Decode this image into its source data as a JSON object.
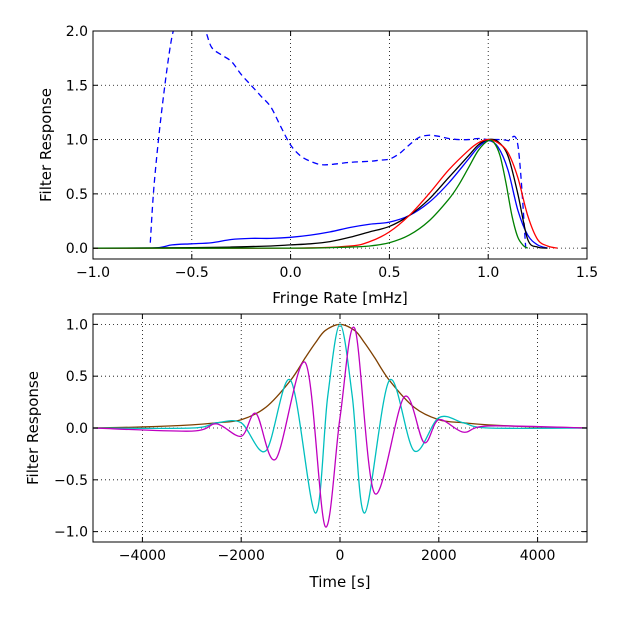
{
  "chart_data": [
    {
      "type": "line",
      "title": "",
      "xlabel": "Fringe Rate [mHz]",
      "ylabel": "Filter Response",
      "xlim": [
        -1.0,
        1.5
      ],
      "ylim": [
        -0.1,
        2.0
      ],
      "grid": true,
      "xticks": [
        -1.0,
        -0.5,
        0.0,
        0.5,
        1.0,
        1.5
      ],
      "xtick_labels": [
        "−1.0",
        "−0.5",
        "0.0",
        "0.5",
        "1.0",
        "1.5"
      ],
      "yticks": [
        0.0,
        0.5,
        1.0,
        1.5,
        2.0
      ],
      "ytick_labels": [
        "0.0",
        "0.5",
        "1.0",
        "1.5",
        "2.0"
      ],
      "series": [
        {
          "name": "blue-dashed",
          "color": "#0000ff",
          "style": "dashed",
          "x": [
            -0.71,
            -0.69,
            -0.65,
            -0.6,
            -0.56,
            -0.5,
            -0.45,
            -0.43,
            -0.4,
            -0.35,
            -0.3,
            -0.25,
            -0.2,
            -0.15,
            -0.1,
            -0.05,
            0.0,
            0.05,
            0.1,
            0.15,
            0.2,
            0.3,
            0.4,
            0.45,
            0.5,
            0.55,
            0.6,
            0.65,
            0.7,
            0.75,
            0.8,
            0.85,
            0.9,
            0.95,
            1.0,
            1.05,
            1.1,
            1.15,
            1.19
          ],
          "y": [
            0.05,
            0.6,
            1.3,
            1.95,
            2.1,
            2.1,
            2.05,
            2.0,
            1.85,
            1.78,
            1.72,
            1.6,
            1.5,
            1.4,
            1.3,
            1.12,
            0.95,
            0.85,
            0.8,
            0.77,
            0.77,
            0.79,
            0.8,
            0.81,
            0.82,
            0.87,
            0.95,
            1.02,
            1.04,
            1.03,
            1.01,
            1.0,
            1.0,
            1.01,
            1.0,
            1.0,
            0.99,
            0.95,
            0.0
          ]
        },
        {
          "name": "blue-solid",
          "color": "#0000ff",
          "style": "solid",
          "x": [
            -1.0,
            -0.7,
            -0.6,
            -0.5,
            -0.4,
            -0.3,
            -0.2,
            -0.1,
            0.0,
            0.1,
            0.2,
            0.3,
            0.4,
            0.5,
            0.6,
            0.7,
            0.8,
            0.9,
            0.95,
            1.0,
            1.05,
            1.1,
            1.15,
            1.2,
            1.25,
            1.3
          ],
          "y": [
            0.0,
            0.0,
            0.03,
            0.04,
            0.05,
            0.08,
            0.09,
            0.09,
            0.1,
            0.12,
            0.15,
            0.19,
            0.22,
            0.24,
            0.3,
            0.42,
            0.6,
            0.82,
            0.93,
            0.99,
            0.93,
            0.72,
            0.35,
            0.12,
            0.03,
            0.0
          ]
        },
        {
          "name": "black",
          "color": "#000000",
          "style": "solid",
          "x": [
            -1.0,
            -0.5,
            -0.3,
            -0.1,
            0.0,
            0.1,
            0.2,
            0.3,
            0.4,
            0.5,
            0.6,
            0.7,
            0.8,
            0.9,
            0.95,
            1.0,
            1.05,
            1.1,
            1.15,
            1.2,
            1.25,
            1.3
          ],
          "y": [
            0.0,
            0.005,
            0.01,
            0.02,
            0.03,
            0.04,
            0.06,
            0.1,
            0.15,
            0.2,
            0.3,
            0.45,
            0.65,
            0.85,
            0.95,
            1.0,
            0.98,
            0.85,
            0.5,
            0.08,
            0.01,
            0.0
          ]
        },
        {
          "name": "red",
          "color": "#ff0000",
          "style": "solid",
          "x": [
            -1.0,
            0.0,
            0.3,
            0.4,
            0.5,
            0.6,
            0.7,
            0.8,
            0.9,
            0.95,
            1.0,
            1.05,
            1.1,
            1.15,
            1.2,
            1.25,
            1.3,
            1.35
          ],
          "y": [
            0.0,
            0.0,
            0.02,
            0.06,
            0.15,
            0.3,
            0.5,
            0.72,
            0.9,
            0.97,
            1.0,
            0.97,
            0.88,
            0.65,
            0.3,
            0.08,
            0.02,
            0.0
          ]
        },
        {
          "name": "green",
          "color": "#008000",
          "style": "solid",
          "x": [
            -1.0,
            0.0,
            0.2,
            0.3,
            0.4,
            0.5,
            0.6,
            0.7,
            0.8,
            0.85,
            0.9,
            0.95,
            1.0,
            1.03,
            1.06,
            1.09,
            1.12,
            1.15,
            1.18,
            1.2
          ],
          "y": [
            0.0,
            0.0,
            0.005,
            0.01,
            0.02,
            0.05,
            0.12,
            0.25,
            0.45,
            0.58,
            0.74,
            0.9,
            0.99,
            0.97,
            0.85,
            0.6,
            0.3,
            0.1,
            0.02,
            0.0
          ]
        }
      ]
    },
    {
      "type": "line",
      "title": "",
      "xlabel": "Time [s]",
      "ylabel": "Filter Response",
      "xlim": [
        -5000,
        5000
      ],
      "ylim": [
        -1.1,
        1.1
      ],
      "grid": true,
      "xticks": [
        -4000,
        -2000,
        0,
        2000,
        4000
      ],
      "xtick_labels": [
        "−4000",
        "−2000",
        "0",
        "2000",
        "4000"
      ],
      "yticks": [
        -1.0,
        -0.5,
        0.0,
        0.5,
        1.0
      ],
      "ytick_labels": [
        "−1.0",
        "−0.5",
        "0.0",
        "0.5",
        "1.0"
      ],
      "series": [
        {
          "name": "envelope",
          "color": "#7f4000",
          "style": "solid",
          "x": [
            -5000,
            -4000,
            -3000,
            -2500,
            -2000,
            -1500,
            -1000,
            -700,
            -500,
            -300,
            0,
            300,
            500,
            700,
            1000,
            1500,
            2000,
            2500,
            3000,
            4000,
            5000
          ],
          "y": [
            0.0,
            0.01,
            0.03,
            0.05,
            0.08,
            0.2,
            0.46,
            0.68,
            0.82,
            0.94,
            1.0,
            0.94,
            0.82,
            0.68,
            0.46,
            0.2,
            0.08,
            0.05,
            0.03,
            0.01,
            0.0
          ]
        },
        {
          "name": "cyan",
          "color": "#00bfbf",
          "style": "solid",
          "x": [
            -5000,
            -3000,
            -2500,
            -2000,
            -1500,
            -1000,
            -500,
            -250,
            0,
            250,
            500,
            1000,
            1500,
            2000,
            2500,
            3000,
            5000
          ],
          "y": [
            0.0,
            0.0,
            0.05,
            0.05,
            -0.22,
            0.46,
            -0.82,
            0.3,
            1.0,
            0.3,
            -0.82,
            0.46,
            -0.22,
            0.1,
            0.05,
            0.0,
            0.0
          ]
        },
        {
          "name": "magenta",
          "color": "#bf00bf",
          "style": "solid",
          "x": [
            -5000,
            -3000,
            -2500,
            -2000,
            -1700,
            -1300,
            -700,
            -300,
            0,
            300,
            700,
            1300,
            1700,
            2000,
            2500,
            3000,
            5000
          ],
          "y": [
            0.0,
            -0.03,
            0.04,
            -0.08,
            0.14,
            -0.3,
            0.63,
            -0.95,
            0.1,
            0.96,
            -0.63,
            0.3,
            -0.14,
            0.08,
            -0.04,
            0.02,
            0.0
          ]
        }
      ]
    }
  ]
}
